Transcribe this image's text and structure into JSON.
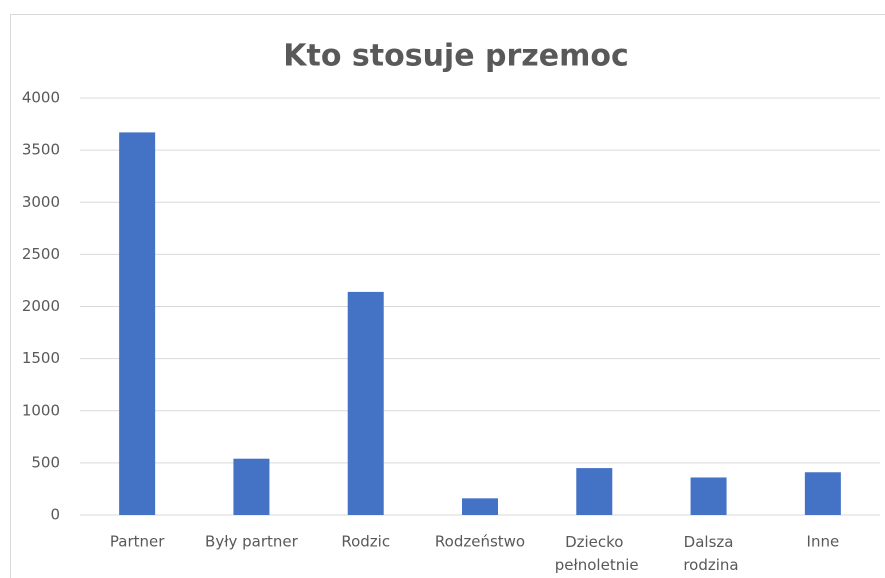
{
  "chart_data": {
    "type": "bar",
    "title": "Kto stosuje przemoc",
    "categories": [
      "Partner",
      "Były partner",
      "Rodzic",
      "Rodzeństwo",
      "Dziecko pełnoletnie",
      "Dalsza rodzina",
      "Inne"
    ],
    "values": [
      3670,
      540,
      2140,
      160,
      450,
      360,
      410
    ],
    "color": "#4472c4",
    "ylim": [
      0,
      4000
    ],
    "yticks": [
      0,
      500,
      1000,
      1500,
      2000,
      2500,
      3000,
      3500,
      4000
    ],
    "grid": true
  }
}
